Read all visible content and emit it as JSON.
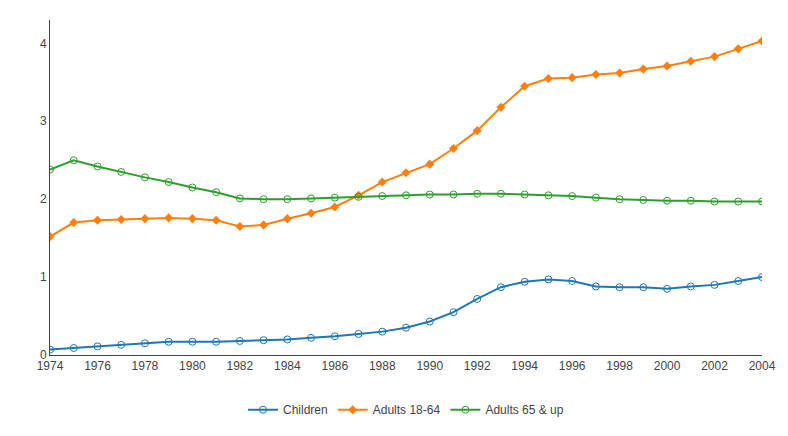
{
  "chart_data": {
    "type": "line",
    "x": [
      1974,
      1975,
      1976,
      1977,
      1978,
      1979,
      1980,
      1981,
      1982,
      1983,
      1984,
      1985,
      1986,
      1987,
      1988,
      1989,
      1990,
      1991,
      1992,
      1993,
      1994,
      1995,
      1996,
      1997,
      1998,
      1999,
      2000,
      2001,
      2002,
      2003,
      2004
    ],
    "series": [
      {
        "name": "Children",
        "marker": "circle-open",
        "values": [
          0.07,
          0.09,
          0.11,
          0.13,
          0.15,
          0.17,
          0.17,
          0.17,
          0.18,
          0.19,
          0.2,
          0.22,
          0.24,
          0.27,
          0.3,
          0.35,
          0.43,
          0.55,
          0.72,
          0.87,
          0.94,
          0.97,
          0.95,
          0.88,
          0.87,
          0.87,
          0.85,
          0.88,
          0.9,
          0.95,
          1.0
        ]
      },
      {
        "name": "Adults 18-64",
        "marker": "diamond",
        "values": [
          1.52,
          1.7,
          1.73,
          1.74,
          1.75,
          1.76,
          1.75,
          1.73,
          1.65,
          1.67,
          1.75,
          1.82,
          1.9,
          2.05,
          2.22,
          2.34,
          2.45,
          2.65,
          2.88,
          3.18,
          3.45,
          3.55,
          3.56,
          3.6,
          3.62,
          3.67,
          3.71,
          3.77,
          3.83,
          3.93,
          4.03
        ]
      },
      {
        "name": "Adults 65 & up",
        "marker": "circle-open",
        "values": [
          2.38,
          2.5,
          2.42,
          2.35,
          2.28,
          2.22,
          2.15,
          2.09,
          2.01,
          2.0,
          2.0,
          2.01,
          2.02,
          2.03,
          2.04,
          2.05,
          2.06,
          2.06,
          2.07,
          2.07,
          2.06,
          2.05,
          2.04,
          2.02,
          2.0,
          1.99,
          1.98,
          1.98,
          1.97,
          1.97,
          1.97
        ]
      }
    ],
    "xlim": [
      1974,
      2004
    ],
    "xticks": [
      1974,
      1976,
      1978,
      1980,
      1982,
      1984,
      1986,
      1988,
      1990,
      1992,
      1994,
      1996,
      1998,
      2000,
      2002,
      2004
    ],
    "ylim": [
      0,
      4.3
    ],
    "yticks": [
      0,
      1,
      2,
      3,
      4
    ],
    "grid": false,
    "legend": "bottom"
  }
}
